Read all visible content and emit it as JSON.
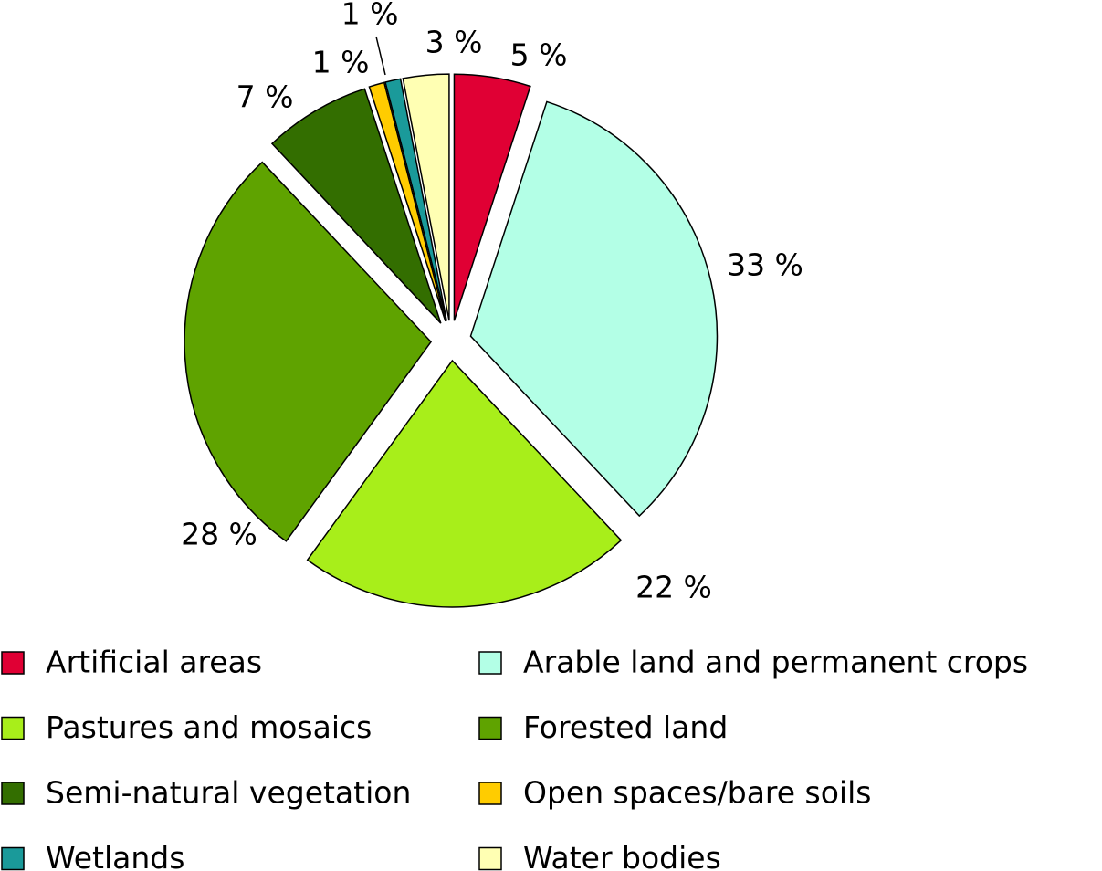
{
  "chart_data": {
    "type": "pie",
    "categories": [
      "Artificial areas",
      "Arable land and permanent crops",
      "Pastures and mosaics",
      "Forested land",
      "Semi-natural vegetation",
      "Open spaces/bare soils",
      "Wetlands",
      "Water bodies"
    ],
    "values": [
      5,
      33,
      22,
      28,
      7,
      1,
      1,
      3
    ],
    "value_labels": [
      "5 %",
      "33 %",
      "22 %",
      "28 %",
      "7 %",
      "1 %",
      "1 %",
      "3 %"
    ],
    "colors": [
      "#e00034",
      "#b3ffe6",
      "#a8ee1a",
      "#5fa300",
      "#336e00",
      "#ffcc00",
      "#1a9a9a",
      "#ffffb3"
    ]
  }
}
